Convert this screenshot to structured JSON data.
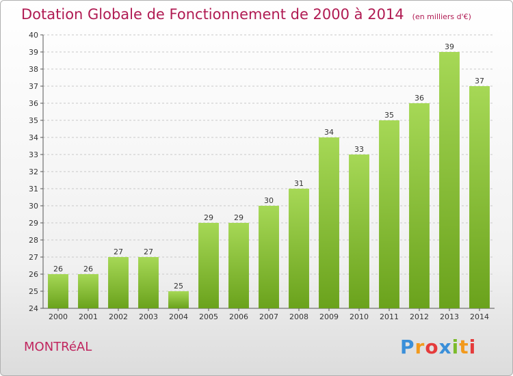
{
  "title": "Dotation Globale de Fonctionnement de 2000 à 2014",
  "subtitle": "(en milliers d'€)",
  "commune": "MONTRéAL",
  "logo": "Proxiti",
  "logo_letters": [
    {
      "ch": "P",
      "color": "#3a8fd9"
    },
    {
      "ch": "r",
      "color": "#f29a1d"
    },
    {
      "ch": "o",
      "color": "#e53b3b"
    },
    {
      "ch": "x",
      "color": "#3a8fd9"
    },
    {
      "ch": "i",
      "color": "#7cbb2c"
    },
    {
      "ch": "t",
      "color": "#f29a1d"
    },
    {
      "ch": "i",
      "color": "#e53b3b"
    }
  ],
  "colors": {
    "bar_light": "#a6d856",
    "bar_dark": "#6aa21c",
    "title": "#b01a52",
    "grid": "#c8c8c8"
  },
  "chart_data": {
    "type": "bar",
    "categories": [
      "2000",
      "2001",
      "2002",
      "2003",
      "2004",
      "2005",
      "2006",
      "2007",
      "2008",
      "2009",
      "2010",
      "2011",
      "2012",
      "2013",
      "2014"
    ],
    "values": [
      26,
      26,
      27,
      27,
      25,
      29,
      29,
      30,
      31,
      34,
      33,
      35,
      36,
      39,
      37
    ],
    "title": "Dotation Globale de Fonctionnement de 2000 à 2014",
    "subtitle": "(en milliers d'€)",
    "xlabel": "",
    "ylabel": "",
    "ylim": [
      24,
      40
    ],
    "yticks": [
      24,
      25,
      26,
      27,
      28,
      29,
      30,
      31,
      32,
      33,
      34,
      35,
      36,
      37,
      38,
      39,
      40
    ],
    "grid": "horizontal-dashed",
    "legend": "none"
  }
}
